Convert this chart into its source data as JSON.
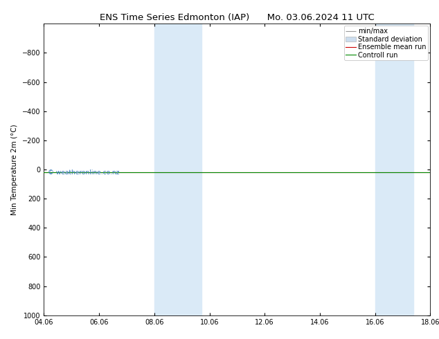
{
  "title_left": "ENS Time Series Edmonton (IAP)",
  "title_right": "Mo. 03.06.2024 11 UTC",
  "ylabel": "Min Temperature 2m (°C)",
  "xlim": [
    0,
    14
  ],
  "ylim": [
    1000,
    -1000
  ],
  "yticks": [
    -800,
    -600,
    -400,
    -200,
    0,
    200,
    400,
    600,
    800,
    1000
  ],
  "xtick_labels": [
    "04.06",
    "06.06",
    "08.06",
    "10.06",
    "12.06",
    "14.06",
    "16.06",
    "18.06"
  ],
  "xtick_positions": [
    0,
    2,
    4,
    6,
    8,
    10,
    12,
    14
  ],
  "shaded_bands": [
    {
      "xmin": 4,
      "xmax": 5.7
    },
    {
      "xmin": 12,
      "xmax": 13.4
    }
  ],
  "shade_color": "#daeaf7",
  "green_line_y": 20,
  "red_line_y": 20,
  "green_line_color": "#008800",
  "red_line_color": "#cc0000",
  "watermark": "© weatheronline.co.nz",
  "watermark_color": "#3377bb",
  "background_color": "#ffffff",
  "legend_items": [
    "min/max",
    "Standard deviation",
    "Ensemble mean run",
    "Controll run"
  ],
  "legend_line_colors": [
    "#999999",
    "#bbbbbb",
    "#cc0000",
    "#008800"
  ],
  "title_fontsize": 9.5,
  "axis_fontsize": 7.5,
  "tick_fontsize": 7,
  "legend_fontsize": 7
}
